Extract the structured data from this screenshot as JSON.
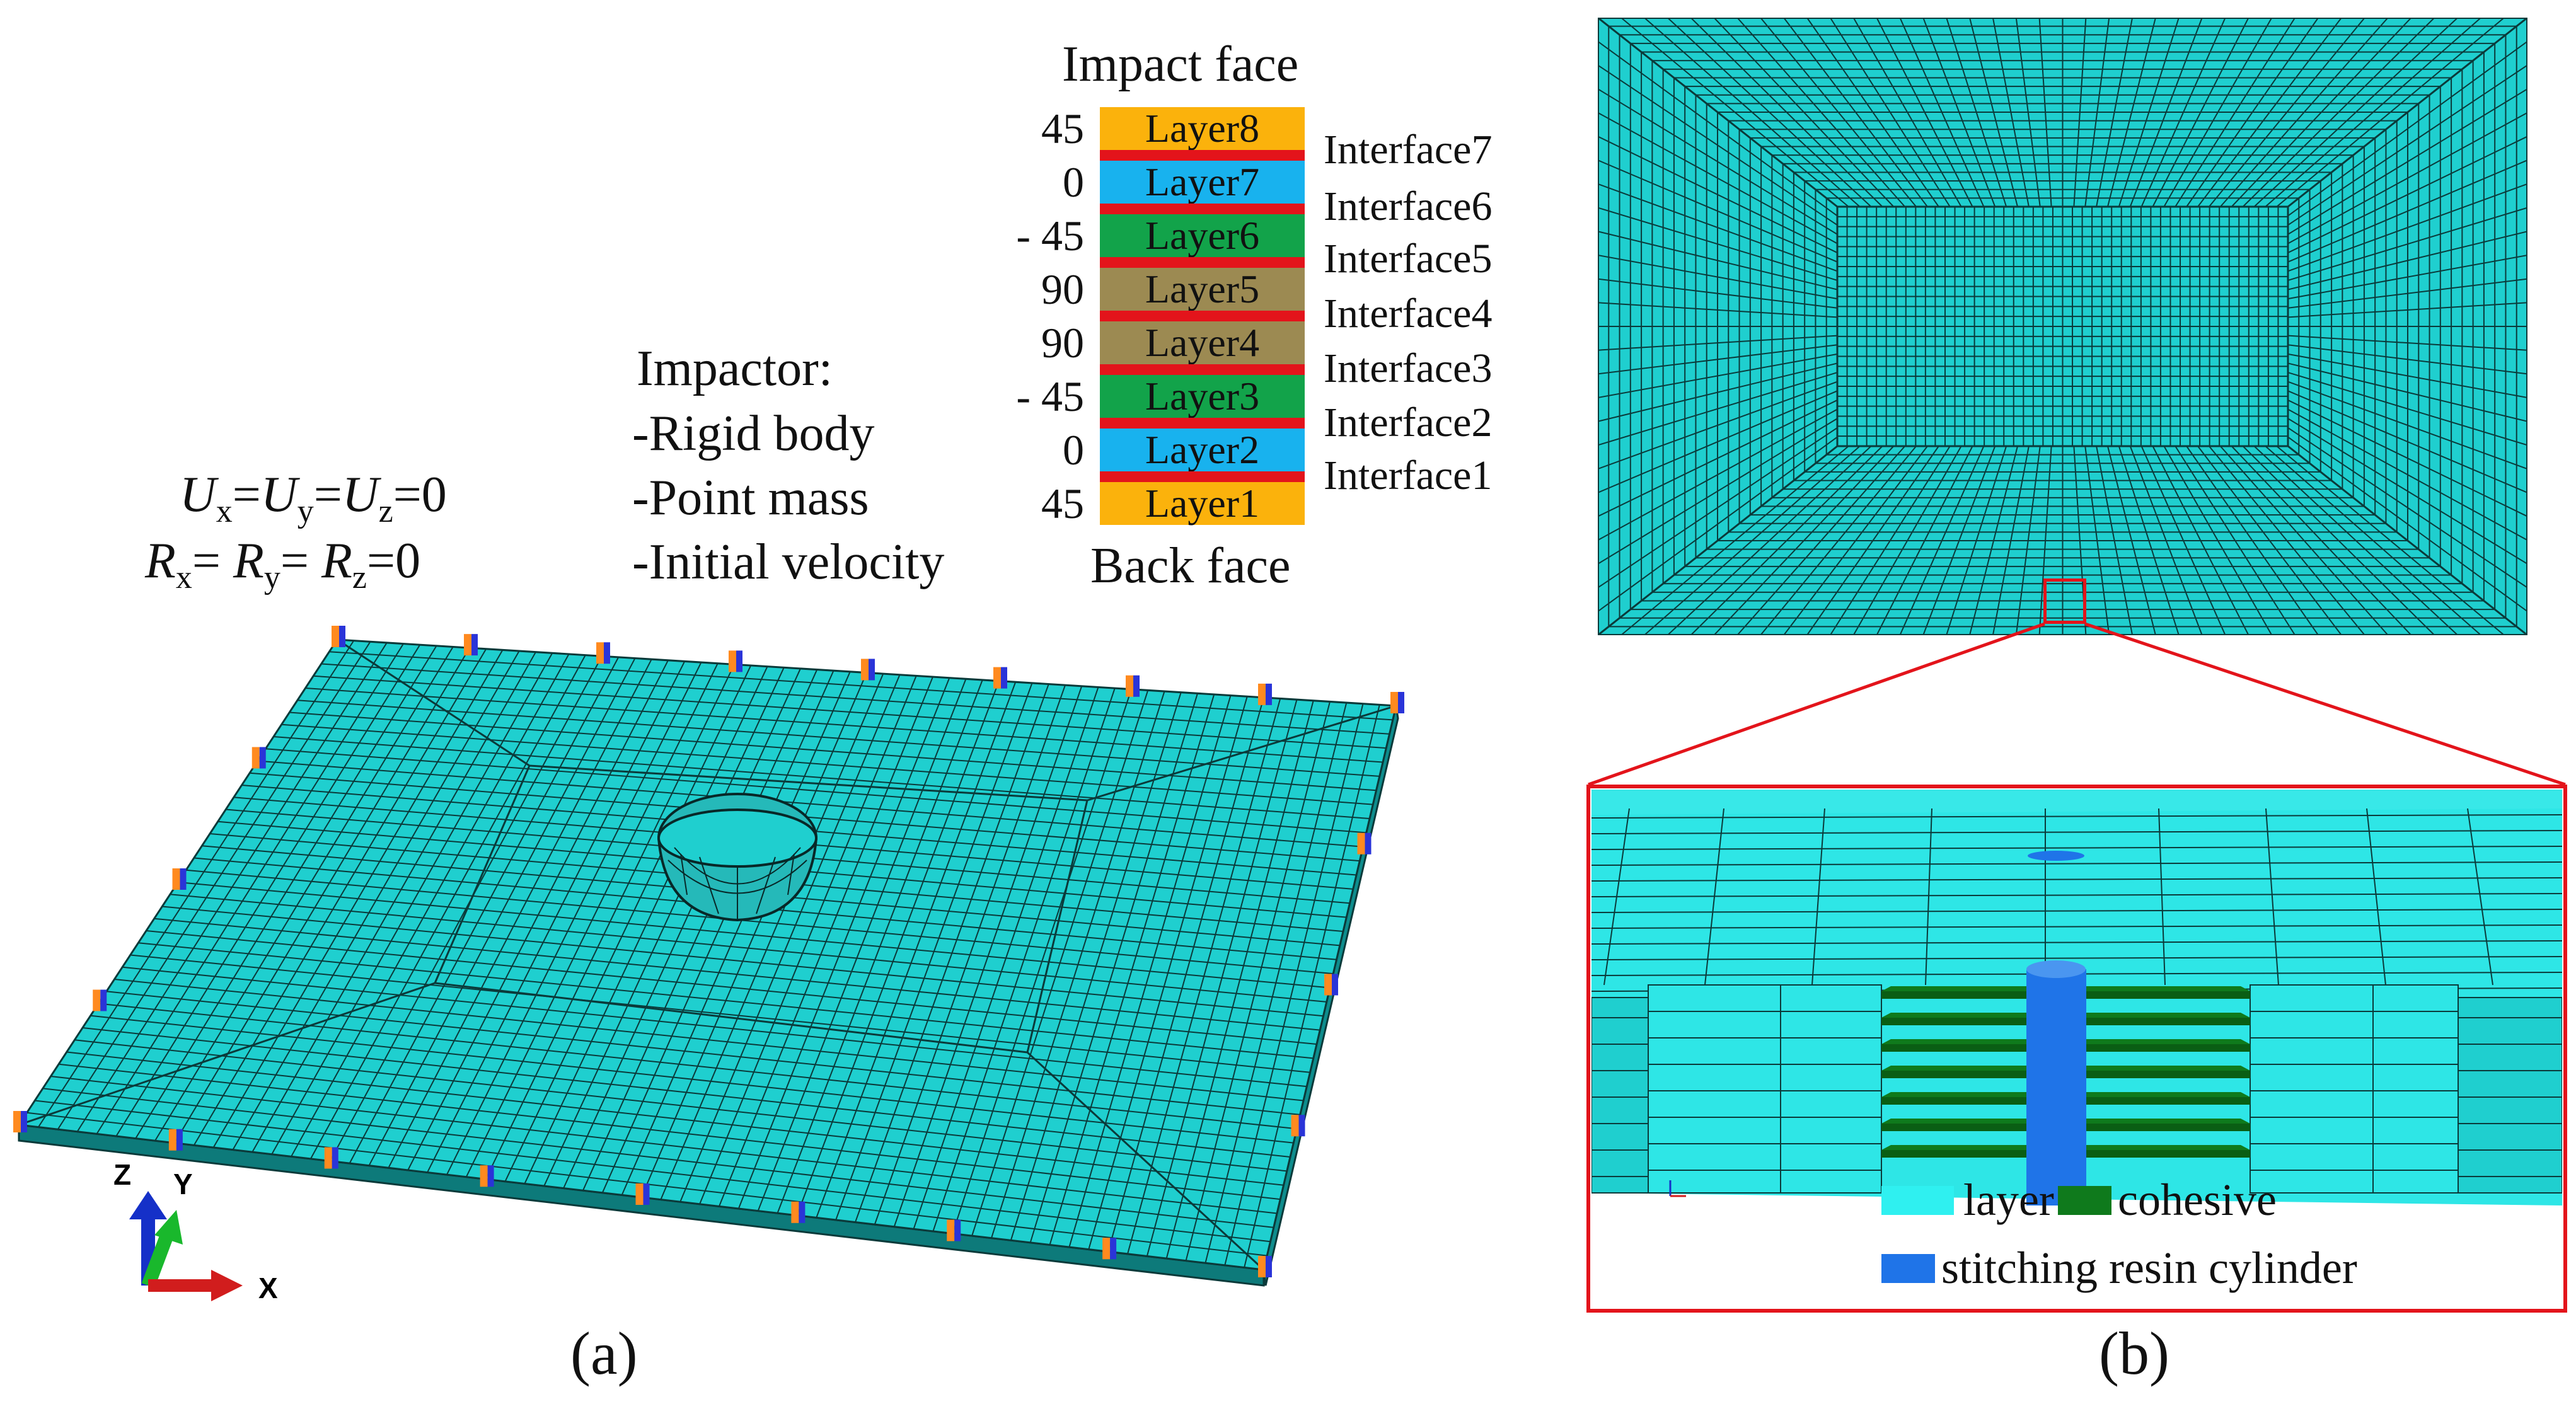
{
  "figure": {
    "panel_a_label": "(a)",
    "panel_b_label": "(b)"
  },
  "boundary": {
    "line1": "Ux=Uy=Uz=0",
    "line2": "Rx= Ry= Rz=0",
    "line1_parts": {
      "u1": "U",
      "x": "x",
      "eq1": "=",
      "u2": "U",
      "y": "y",
      "eq2": "=",
      "u3": "U",
      "z": "z",
      "eq3": "=0"
    },
    "line2_parts": {
      "r1": "R",
      "x": "x",
      "eq1": "= ",
      "r2": "R",
      "y": "y",
      "eq2": "= ",
      "r3": "R",
      "z": "z",
      "eq3": "=0"
    }
  },
  "impactor": {
    "title": "Impactor:",
    "items": [
      "-Rigid body",
      "-Point mass",
      "-Initial velocity"
    ]
  },
  "stack": {
    "top_label": "Impact face",
    "bottom_label": "Back face",
    "layers": [
      {
        "name": "Layer8",
        "angle": "45",
        "color": "#fbb20c"
      },
      {
        "name": "Layer7",
        "angle": "0",
        "color": "#18b2ee"
      },
      {
        "name": "Layer6",
        "angle": "- 45",
        "color": "#12a34a"
      },
      {
        "name": "Layer5",
        "angle": "90",
        "color": "#9c8a52"
      },
      {
        "name": "Layer4",
        "angle": "90",
        "color": "#9c8a52"
      },
      {
        "name": "Layer3",
        "angle": "- 45",
        "color": "#12a34a"
      },
      {
        "name": "Layer2",
        "angle": "0",
        "color": "#18b2ee"
      },
      {
        "name": "Layer1",
        "angle": "45",
        "color": "#fbb20c"
      }
    ],
    "interfaces": [
      "Interface7",
      "Interface6",
      "Interface5",
      "Interface4",
      "Interface3",
      "Interface2",
      "Interface1"
    ],
    "interface_color": "#e3141b"
  },
  "axes": {
    "z": "Z",
    "y": "Y",
    "x": "X"
  },
  "legend": {
    "layer": "layer",
    "cohesive": "cohesive",
    "resin": "stitching resin cylinder",
    "layer_color": "#2ff0f0",
    "cohesive_color": "#0f7a1c",
    "resin_color": "#1f74e8"
  },
  "colors": {
    "mesh_fill": "#1fcfcf",
    "mesh_line": "#0b3a3a",
    "zoom_frame": "#e3141b"
  }
}
